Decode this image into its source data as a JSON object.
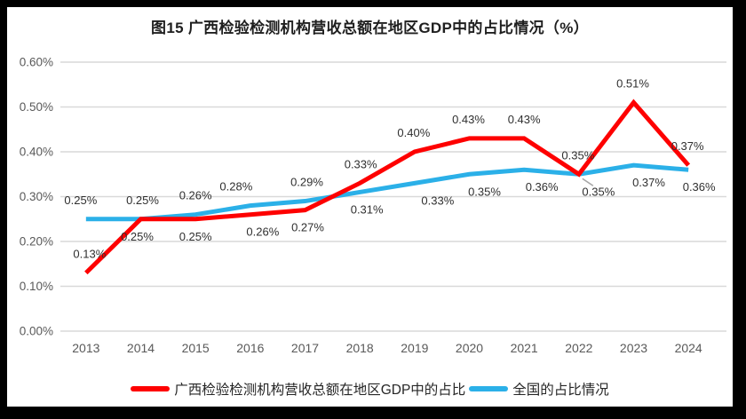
{
  "title": "图15 广西检验检测机构营收总额在地区GDP中的占比情况（%）",
  "chart_data": {
    "type": "line",
    "title": "图15 广西检验检测机构营收总额在地区GDP中的占比情况（%）",
    "categories": [
      "2013",
      "2014",
      "2015",
      "2016",
      "2017",
      "2018",
      "2019",
      "2020",
      "2021",
      "2022",
      "2023",
      "2024"
    ],
    "series": [
      {
        "name": "广西检验检测机构营收总额在地区GDP中的占比",
        "color": "#fe0000",
        "values": [
          0.13,
          0.25,
          0.25,
          0.26,
          0.27,
          0.33,
          0.4,
          0.43,
          0.43,
          0.35,
          0.51,
          0.37
        ],
        "labels": [
          "0.13%",
          "0.25%",
          "0.25%",
          "0.26%",
          "0.27%",
          "0.33%",
          "0.40%",
          "0.43%",
          "0.43%",
          "0.35%",
          "0.51%",
          "0.37%"
        ],
        "label_side": [
          "above",
          "below",
          "below",
          "below",
          "below",
          "above",
          "above",
          "above",
          "above",
          "leader-below",
          "above",
          "above"
        ],
        "label_dx": [
          4,
          -4,
          0,
          14,
          3,
          1,
          -1,
          -1,
          0,
          22,
          -1,
          -1
        ]
      },
      {
        "name": "全国的占比情况",
        "color": "#2bb0e8",
        "values": [
          0.25,
          0.25,
          0.26,
          0.28,
          0.29,
          0.31,
          0.33,
          0.35,
          0.36,
          0.35,
          0.37,
          0.36
        ],
        "labels": [
          "0.25%",
          "0.25%",
          "0.26%",
          "0.28%",
          "0.29%",
          "0.31%",
          "0.33%",
          "0.35%",
          "0.36%",
          "0.35%",
          "0.37%",
          "0.36%"
        ],
        "label_side": [
          "above",
          "above",
          "above",
          "above",
          "above",
          "below",
          "below",
          "below",
          "below",
          "above",
          "below",
          "below"
        ],
        "label_dx": [
          -6,
          2,
          0,
          -16,
          2,
          8,
          26,
          17,
          20,
          -1,
          17,
          12
        ]
      }
    ],
    "ylim": [
      0,
      0.6
    ],
    "y_ticks": [
      "0.00%",
      "0.10%",
      "0.20%",
      "0.30%",
      "0.40%",
      "0.50%",
      "0.60%"
    ],
    "xlabel": "",
    "ylabel": "",
    "grid": true,
    "legend_position": "bottom",
    "colors": {
      "grid": "#d9d9d9",
      "axis_text": "#595959",
      "label_text": "#2f2f2f",
      "leader_line": "#a6a6a6",
      "background": "#ffffff",
      "page_border": "#000000"
    }
  }
}
